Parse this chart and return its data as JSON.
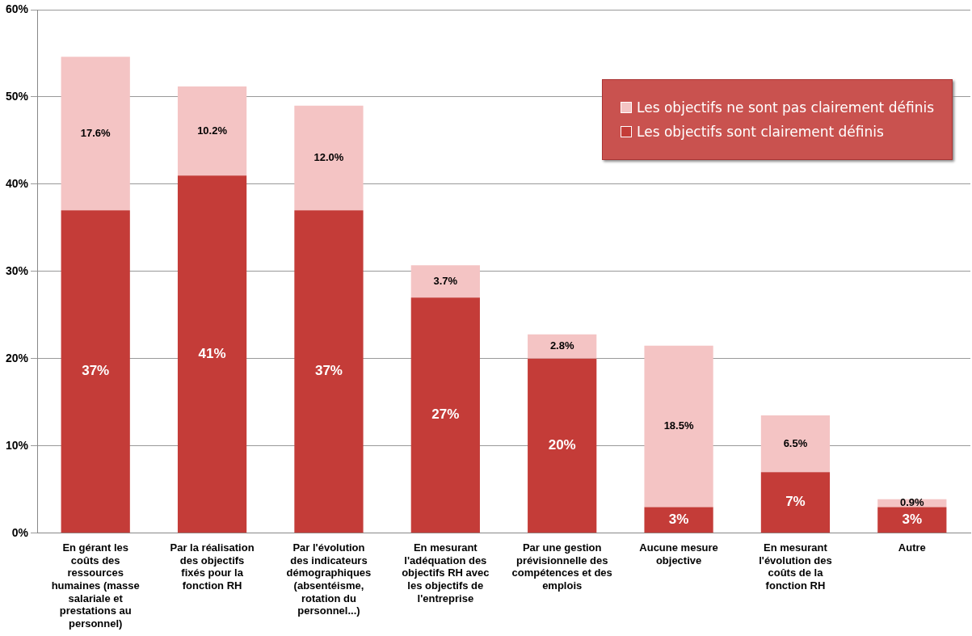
{
  "chart_data": {
    "type": "bar",
    "stacked": true,
    "categories": [
      "En gérant les coûts des ressources humaines (masse salariale et prestations au personnel)",
      "Par la réalisation des objectifs fixés pour la fonction RH",
      "Par l'évolution des indicateurs démographiques (absentéisme, rotation du personnel...)",
      "En mesurant l'adéquation des objectifs RH avec les objectifs de l'entreprise",
      "Par une gestion prévisionnelle des compétences et des emplois",
      "Aucune mesure objective",
      "En mesurant l'évolution des coûts de la fonction RH",
      "Autre"
    ],
    "series": [
      {
        "name": "Les objectifs sont clairement définis",
        "color": "#c43c38",
        "values": [
          37,
          41,
          37,
          27,
          20,
          3,
          7,
          3
        ],
        "value_labels": [
          "37%",
          "41%",
          "37%",
          "27%",
          "20%",
          "3%",
          "7%",
          "3%"
        ]
      },
      {
        "name": "Les objectifs ne sont pas clairement définis",
        "color": "#f4c4c4",
        "values": [
          17.6,
          10.2,
          12.0,
          3.7,
          2.8,
          18.5,
          6.5,
          0.9
        ],
        "value_labels": [
          "17.6%",
          "10.2%",
          "12.0%",
          "3.7%",
          "2.8%",
          "18.5%",
          "6.5%",
          "0.9%"
        ]
      }
    ],
    "ylim": [
      0,
      60
    ],
    "yticks": [
      {
        "value": 0,
        "label": "0%"
      },
      {
        "value": 10,
        "label": "10%"
      },
      {
        "value": 20,
        "label": "20%"
      },
      {
        "value": 30,
        "label": "30%"
      },
      {
        "value": 40,
        "label": "40%"
      },
      {
        "value": 50,
        "label": "50%"
      },
      {
        "value": 60,
        "label": "60%"
      }
    ],
    "grid": "y",
    "legend": "top right"
  }
}
